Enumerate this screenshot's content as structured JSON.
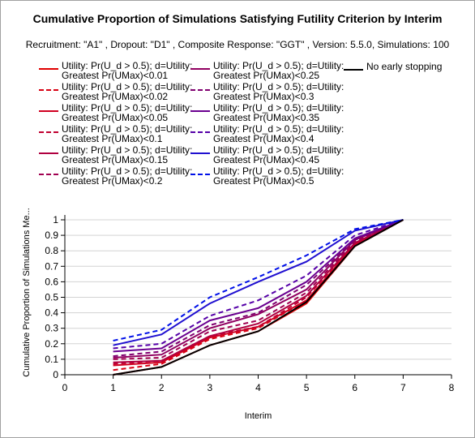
{
  "chart_data": {
    "type": "line",
    "title": "Cumulative Proportion of Simulations Satisfying Futility Criterion by Interim",
    "subtitle": "Recruitment: \"A1\" , Dropout: \"D1\" , Composite Response: \"GGT\" , Version: 5.5.0, Simulations: 100",
    "xlabel": "Interim",
    "ylabel": "Cumulative Proportion of Simulations Me...",
    "xlim": [
      0,
      8
    ],
    "ylim": [
      0,
      1
    ],
    "x_ticks": [
      "0",
      "1",
      "2",
      "3",
      "4",
      "5",
      "6",
      "7",
      "8"
    ],
    "y_ticks": [
      "0",
      "0.1",
      "0.2",
      "0.3",
      "0.4",
      "0.5",
      "0.6",
      "0.7",
      "0.8",
      "0.9",
      "1"
    ],
    "grid": "horizontal",
    "legend_position": "top",
    "x": [
      1,
      2,
      3,
      4,
      5,
      6,
      7
    ],
    "series": [
      {
        "name": "Utility: Pr(U_d > 0.5); d=Utility:\nGreatest Pr(UMax)<0.01",
        "color": "#e00000",
        "dash": false,
        "values": [
          0.0,
          0.05,
          0.19,
          0.28,
          0.46,
          0.83,
          1.0
        ]
      },
      {
        "name": "Utility: Pr(U_d > 0.5); d=Utility:\nGreatest Pr(UMax)<0.02",
        "color": "#d80012",
        "dash": true,
        "values": [
          0.03,
          0.07,
          0.23,
          0.3,
          0.48,
          0.84,
          1.0
        ]
      },
      {
        "name": "Utility: Pr(U_d > 0.5); d=Utility:\nGreatest Pr(UMax)<0.05",
        "color": "#d00020",
        "dash": false,
        "values": [
          0.06,
          0.08,
          0.24,
          0.31,
          0.48,
          0.84,
          1.0
        ]
      },
      {
        "name": "Utility: Pr(U_d > 0.5); d=Utility:\nGreatest Pr(UMax)<0.1",
        "color": "#c00030",
        "dash": true,
        "values": [
          0.07,
          0.09,
          0.25,
          0.31,
          0.5,
          0.85,
          1.0
        ]
      },
      {
        "name": "Utility: Pr(U_d > 0.5); d=Utility:\nGreatest Pr(UMax)<0.15",
        "color": "#b00040",
        "dash": false,
        "values": [
          0.08,
          0.09,
          0.25,
          0.33,
          0.51,
          0.85,
          1.0
        ]
      },
      {
        "name": "Utility: Pr(U_d > 0.5); d=Utility:\nGreatest Pr(UMax)<0.2",
        "color": "#a00050",
        "dash": true,
        "values": [
          0.1,
          0.11,
          0.28,
          0.35,
          0.53,
          0.86,
          1.0
        ]
      },
      {
        "name": "Utility: Pr(U_d > 0.5); d=Utility:\nGreatest Pr(UMax)<0.25",
        "color": "#900060",
        "dash": false,
        "values": [
          0.11,
          0.13,
          0.3,
          0.39,
          0.55,
          0.87,
          1.0
        ]
      },
      {
        "name": "Utility: Pr(U_d > 0.5); d=Utility:\nGreatest Pr(UMax)<0.3",
        "color": "#800070",
        "dash": true,
        "values": [
          0.12,
          0.15,
          0.32,
          0.4,
          0.58,
          0.87,
          1.0
        ]
      },
      {
        "name": "Utility: Pr(U_d > 0.5); d=Utility:\nGreatest Pr(UMax)<0.35",
        "color": "#6a0090",
        "dash": false,
        "values": [
          0.15,
          0.17,
          0.35,
          0.43,
          0.6,
          0.88,
          1.0
        ]
      },
      {
        "name": "Utility: Pr(U_d > 0.5); d=Utility:\nGreatest Pr(UMax)<0.4",
        "color": "#5500a8",
        "dash": true,
        "values": [
          0.17,
          0.2,
          0.38,
          0.48,
          0.64,
          0.9,
          1.0
        ]
      },
      {
        "name": "Utility: Pr(U_d > 0.5); d=Utility:\nGreatest Pr(UMax)<0.45",
        "color": "#2010d0",
        "dash": false,
        "values": [
          0.19,
          0.26,
          0.46,
          0.6,
          0.73,
          0.93,
          1.0
        ]
      },
      {
        "name": "Utility: Pr(U_d > 0.5); d=Utility:\nGreatest Pr(UMax)<0.5",
        "color": "#0010e8",
        "dash": true,
        "values": [
          0.22,
          0.29,
          0.5,
          0.63,
          0.77,
          0.94,
          1.0
        ]
      },
      {
        "name": "No early stopping",
        "color": "#000000",
        "dash": false,
        "values": [
          0.0,
          0.05,
          0.19,
          0.28,
          0.47,
          0.83,
          1.0
        ]
      }
    ]
  }
}
